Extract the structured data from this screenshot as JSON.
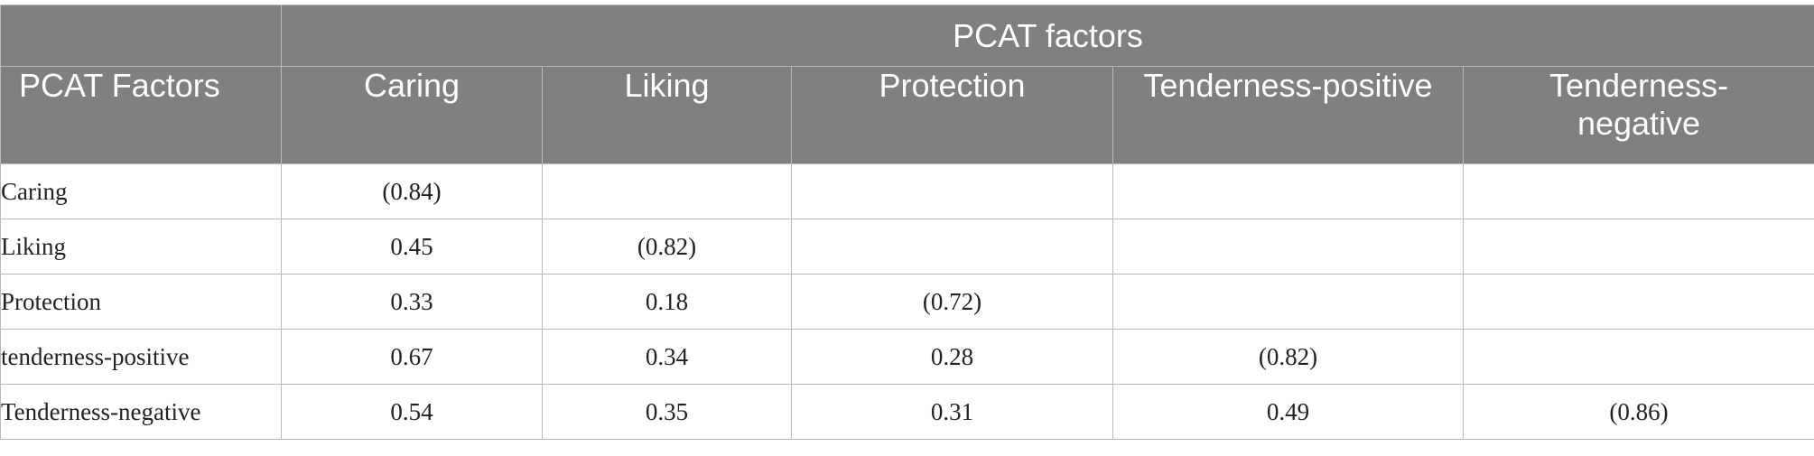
{
  "table": {
    "group_header": "PCAT factors",
    "row_header": "PCAT Factors",
    "columns": [
      "Caring",
      "Liking",
      "Protection",
      "Tenderness-positive",
      "Tenderness-negative"
    ],
    "rows": [
      {
        "label": "Caring",
        "values": [
          "(0.84)",
          "",
          "",
          "",
          ""
        ]
      },
      {
        "label": "Liking",
        "values": [
          "0.45",
          "(0.82)",
          "",
          "",
          ""
        ]
      },
      {
        "label": "Protection",
        "values": [
          "0.33",
          "0.18",
          "(0.72)",
          "",
          ""
        ]
      },
      {
        "label": "tenderness-positive",
        "values": [
          "0.67",
          "0.34",
          "0.28",
          "(0.82)",
          ""
        ]
      },
      {
        "label": "Tenderness-negative",
        "values": [
          "0.54",
          "0.35",
          "0.31",
          "0.49",
          "(0.86)"
        ]
      }
    ]
  },
  "colors": {
    "header_background": "#7f807f",
    "header_text": "#ffffff",
    "border": "#b8b8b8"
  }
}
